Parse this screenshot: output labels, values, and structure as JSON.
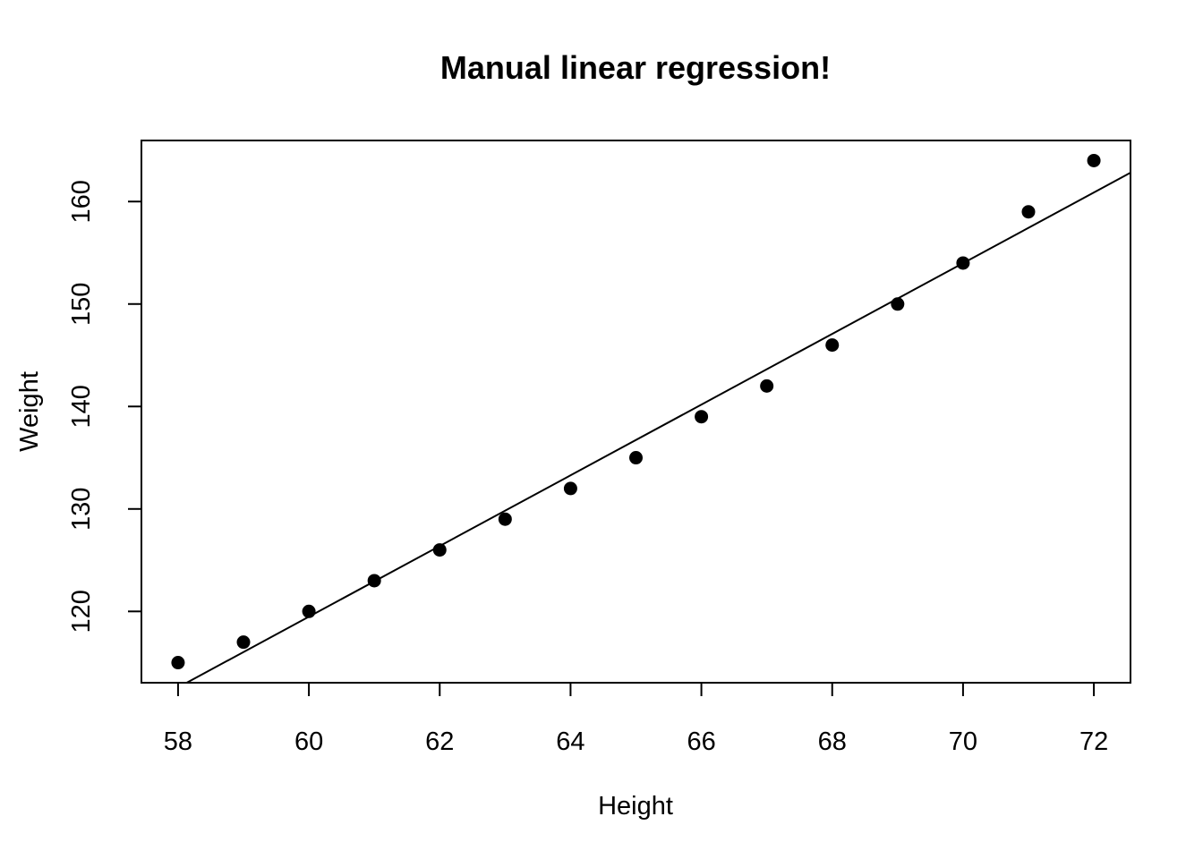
{
  "chart_data": {
    "type": "scatter",
    "title": "Manual linear regression!",
    "xlabel": "Height",
    "ylabel": "Weight",
    "x": [
      58,
      59,
      60,
      61,
      62,
      63,
      64,
      65,
      66,
      67,
      68,
      69,
      70,
      71,
      72
    ],
    "y": [
      115,
      117,
      120,
      123,
      126,
      129,
      132,
      135,
      139,
      142,
      146,
      150,
      154,
      159,
      164
    ],
    "x_ticks": [
      58,
      60,
      62,
      64,
      66,
      68,
      70,
      72
    ],
    "y_ticks": [
      120,
      130,
      140,
      150,
      160
    ],
    "xlim": [
      57.44,
      72.56
    ],
    "ylim": [
      113.04,
      165.96
    ],
    "regression_line": {
      "slope": 3.45,
      "intercept": -87.517
    },
    "grid": false,
    "legend": false,
    "point_color": "#000000",
    "line_color": "#000000",
    "axis_color": "#000000",
    "background_color": "#ffffff"
  }
}
